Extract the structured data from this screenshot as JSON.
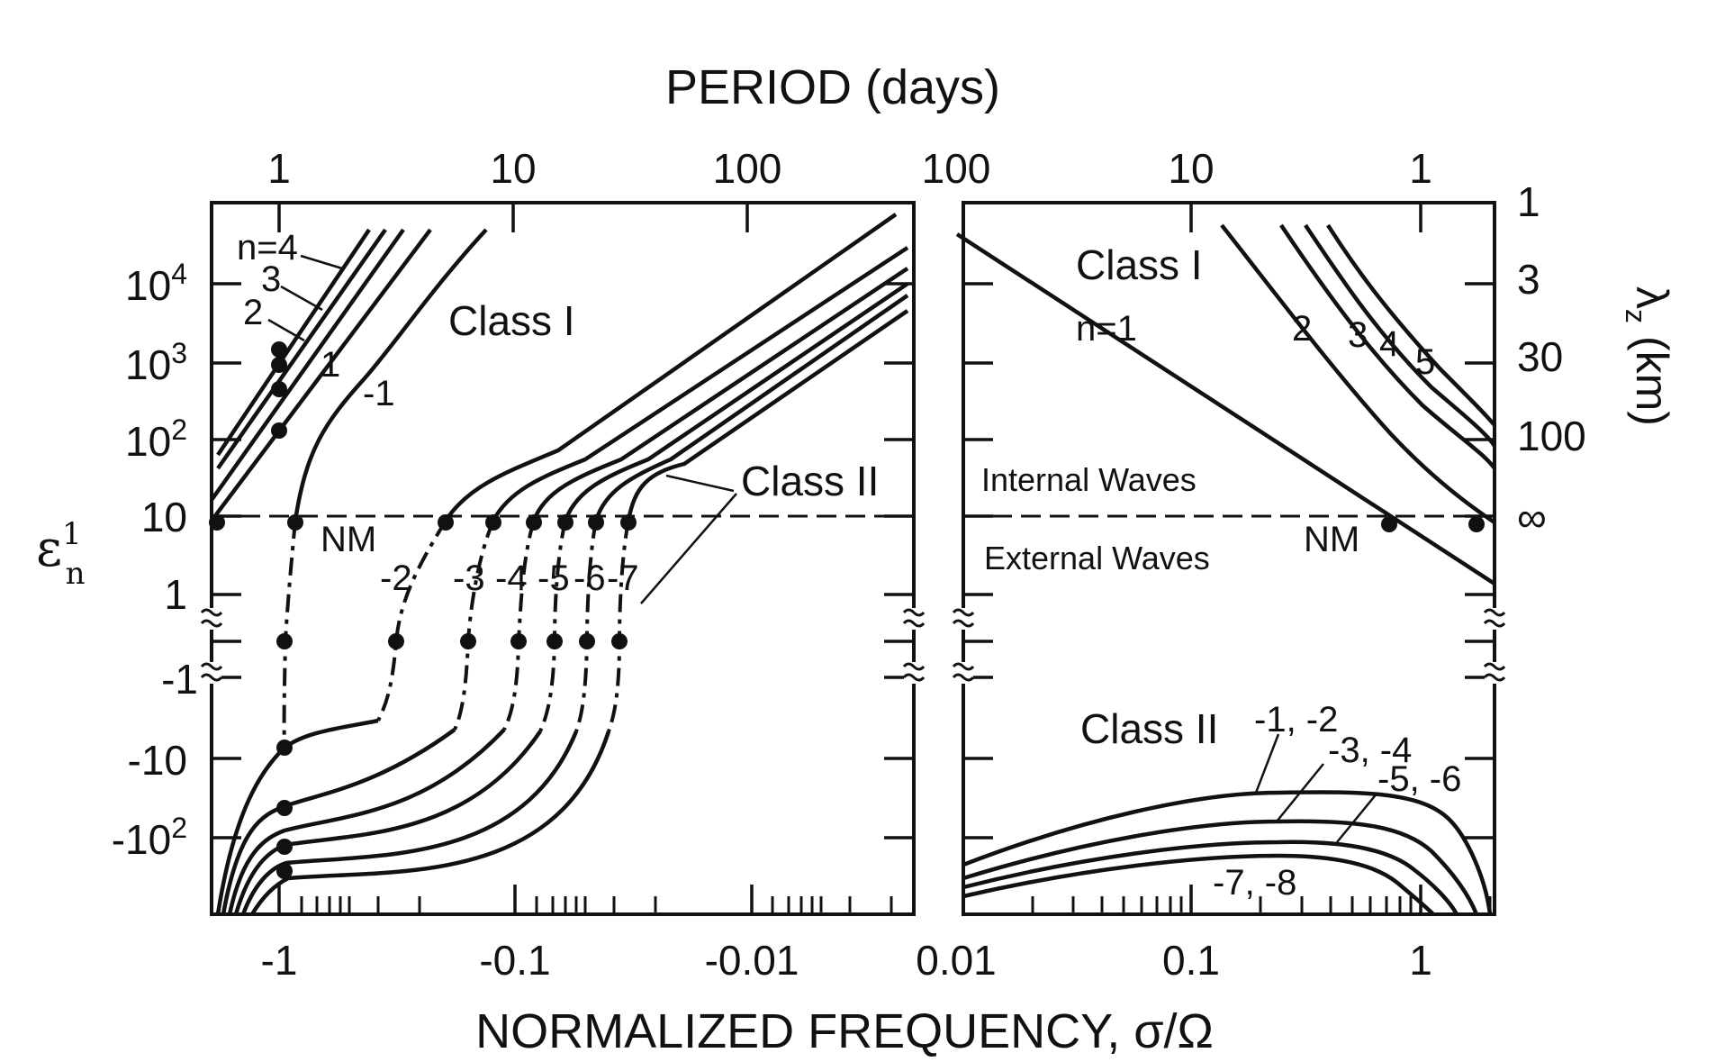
{
  "chart_data": [
    {
      "type": "line",
      "panel": "left",
      "xlabel": "NORMALIZED FREQUENCY, σ/Ω",
      "x2label": "PERIOD (days)",
      "ylabel_main": "ε",
      "ylabel_sub": "n",
      "ylabel_sup": "1",
      "xticks": [
        "-1",
        "-0.1",
        "-0.01"
      ],
      "x2ticks": [
        "1",
        "10",
        "100"
      ],
      "yticks": [
        {
          "label": "10",
          "sup": "4"
        },
        {
          "label": "10",
          "sup": "3"
        },
        {
          "label": "10",
          "sup": "2"
        },
        {
          "label": "10",
          "sup": ""
        },
        {
          "label": "1",
          "sup": ""
        },
        {
          "label": "-1",
          "sup": ""
        },
        {
          "label": "-10",
          "sup": ""
        },
        {
          "label": "-10",
          "sup": "2"
        }
      ],
      "annotations": {
        "class1": "Class I",
        "class2": "Class II",
        "nm": "NM",
        "class1_labels": [
          "n=4",
          "3",
          "2",
          "1",
          "-1"
        ],
        "class2_labels": [
          "-2",
          "-3",
          "-4",
          "-5",
          "-6",
          "-7"
        ]
      },
      "series": [
        {
          "values": [
            [
              -2.2,
              60
            ],
            [
              -1.2,
              1500
            ],
            [
              -0.5,
              80000
            ]
          ]
        },
        {
          "values": [
            [
              -2.2,
              50
            ],
            [
              -1.1,
              1000
            ],
            [
              -0.45,
              80000
            ]
          ]
        },
        {
          "values": [
            [
              -2.2,
              20
            ],
            [
              -1.0,
              400
            ],
            [
              -0.4,
              80000
            ]
          ]
        },
        {
          "values": [
            [
              -2.2,
              10
            ],
            [
              -1.0,
              130
            ],
            [
              -0.3,
              80000
            ]
          ]
        },
        {
          "values": [
            [
              -0.95,
              10
            ],
            [
              -0.7,
              100
            ],
            [
              -0.35,
              1000
            ],
            [
              -0.13,
              80000
            ]
          ]
        },
        {
          "values": [
            [
              -0.3,
              -0.1
            ],
            [
              -0.18,
              1
            ],
            [
              -0.12,
              10
            ],
            [
              -0.05,
              100
            ],
            [
              -0.005,
              10000
            ],
            [
              -0.0025,
              80000
            ]
          ]
        }
      ],
      "markers": [
        {
          "x": -2.1,
          "y": 10
        },
        {
          "x": -0.95,
          "y": 10
        },
        {
          "x": -1,
          "y": 130
        },
        {
          "x": -1,
          "y": 400
        },
        {
          "x": -1,
          "y": 1000
        },
        {
          "x": -1,
          "y": 1500
        },
        {
          "x": -0.18,
          "y": 10
        },
        {
          "x": -0.11,
          "y": 10
        },
        {
          "x": -0.072,
          "y": 10
        },
        {
          "x": -0.052,
          "y": 10
        },
        {
          "x": -0.038,
          "y": 10
        },
        {
          "x": -0.029,
          "y": 10
        },
        {
          "x": -1,
          "y": -7
        },
        {
          "x": -1,
          "y": -30
        },
        {
          "x": -1,
          "y": -100
        },
        {
          "x": -1,
          "y": -200
        }
      ]
    },
    {
      "type": "line",
      "panel": "right",
      "xticks": [
        "0.01",
        "0.1",
        "1"
      ],
      "x2ticks": [
        "100",
        "10",
        "1"
      ],
      "y2label": "λ",
      "y2sub": "z",
      "y2unit": "(km)",
      "y2ticks": [
        "1",
        "3",
        "30",
        "100",
        "∞"
      ],
      "annotations": {
        "class1": "Class I",
        "class2": "Class II",
        "internal": "Internal Waves",
        "external": "External Waves",
        "nm": "NM",
        "class1_labels": [
          "n=1",
          "2",
          "3",
          "4",
          "5"
        ],
        "class2_labels": [
          "-1, -2",
          "-3, -4",
          "-5, -6",
          "-7, -8"
        ]
      },
      "series": [
        {
          "values": [
            [
              0.01,
              50000
            ],
            [
              0.08,
              1000
            ],
            [
              0.75,
              10
            ],
            [
              2,
              1
            ]
          ]
        },
        {
          "values": [
            [
              0.2,
              60000
            ],
            [
              0.6,
              1000
            ],
            [
              1.6,
              10
            ]
          ]
        },
        {
          "values": [
            [
              0.35,
              60000
            ],
            [
              0.9,
              1000
            ],
            [
              2,
              60
            ]
          ]
        },
        {
          "values": [
            [
              0.4,
              60000
            ],
            [
              1.0,
              1000
            ],
            [
              2,
              100
            ]
          ]
        },
        {
          "values": [
            [
              0.5,
              60000
            ],
            [
              1.2,
              1000
            ],
            [
              2,
              150
            ]
          ]
        }
      ],
      "markers": [
        {
          "x": 0.75,
          "y": 10
        },
        {
          "x": 1.9,
          "y": 10
        }
      ]
    }
  ]
}
